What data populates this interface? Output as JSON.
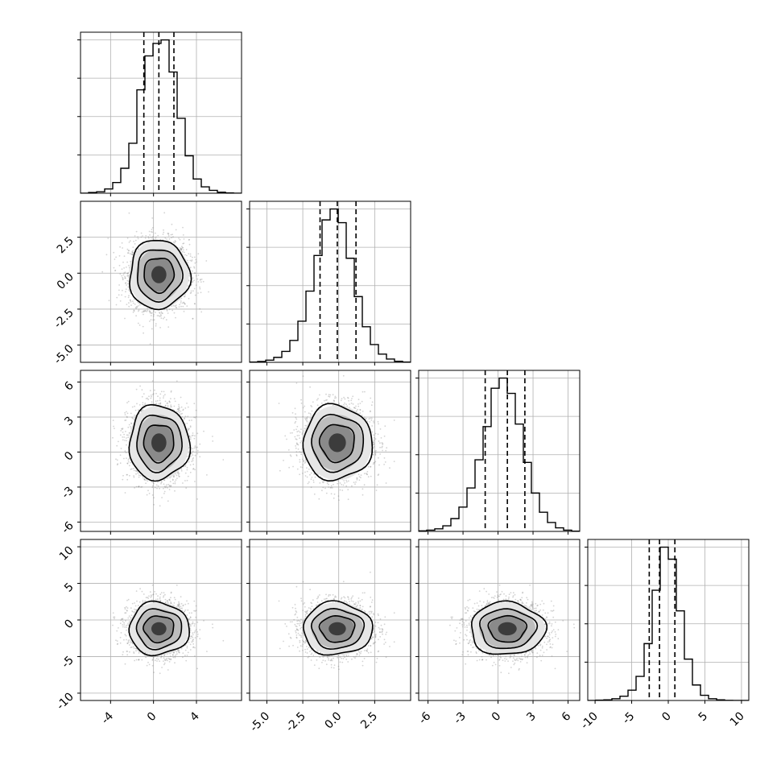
{
  "chart_data": {
    "type": "corner",
    "n_params": 4,
    "grid": true,
    "colors": {
      "line": "#000000",
      "grid": "#b0b0b0",
      "scatter": "#808080",
      "frame": "#000000"
    },
    "ranges": [
      [
        -6.8,
        8.2
      ],
      [
        -6.2,
        5.0
      ],
      [
        -6.8,
        7.0
      ],
      [
        -11.0,
        11.0
      ]
    ],
    "tick_labels": [
      [
        "-4",
        "0",
        "4"
      ],
      [
        "-5.0",
        "-2.5",
        "0.0",
        "2.5"
      ],
      [
        "-6",
        "-3",
        "0",
        "3",
        "6"
      ],
      [
        "-10",
        "-5",
        "0",
        "5",
        "10"
      ]
    ],
    "tick_values": [
      [
        -4,
        0,
        4
      ],
      [
        -5,
        -2.5,
        0,
        2.5
      ],
      [
        -6,
        -3,
        0,
        3,
        6
      ],
      [
        -10,
        -5,
        0,
        5,
        10
      ]
    ],
    "quantiles": [
      [
        -0.9,
        0.5,
        1.9
      ],
      [
        -1.3,
        -0.1,
        1.2
      ],
      [
        -1.1,
        0.8,
        2.3
      ],
      [
        -2.6,
        -1.2,
        0.9
      ]
    ],
    "histograms": [
      {
        "bins": [
          -6.8,
          -6.05,
          -5.3,
          -4.55,
          -3.8,
          -3.05,
          -2.3,
          -1.55,
          -0.8,
          -0.05,
          0.7,
          1.45,
          2.2,
          2.95,
          3.7,
          4.45,
          5.2,
          5.95,
          6.7,
          7.45,
          8.2
        ],
        "counts": [
          0,
          2,
          4,
          12,
          30,
          70,
          140,
          290,
          385,
          420,
          430,
          340,
          210,
          105,
          40,
          18,
          8,
          3,
          1,
          0
        ]
      },
      {
        "bins": [
          -6.2,
          -5.64,
          -5.08,
          -4.52,
          -3.96,
          -3.4,
          -2.84,
          -2.28,
          -1.72,
          -1.16,
          -0.6,
          -0.04,
          0.52,
          1.08,
          1.64,
          2.2,
          2.76,
          3.32,
          3.88,
          4.44,
          5.0
        ],
        "counts": [
          1,
          3,
          8,
          18,
          40,
          80,
          150,
          260,
          390,
          520,
          560,
          510,
          380,
          240,
          130,
          65,
          30,
          12,
          4,
          1
        ]
      },
      {
        "bins": [
          -6.8,
          -6.11,
          -5.42,
          -4.73,
          -4.04,
          -3.35,
          -2.66,
          -1.97,
          -1.28,
          -0.59,
          0.1,
          0.79,
          1.48,
          2.17,
          2.86,
          3.55,
          4.24,
          4.93,
          5.62,
          6.31,
          7.0
        ],
        "counts": [
          2,
          5,
          10,
          22,
          50,
          95,
          170,
          280,
          410,
          560,
          600,
          540,
          420,
          270,
          150,
          75,
          35,
          14,
          5,
          1
        ]
      },
      {
        "bins": [
          -11.0,
          -9.9,
          -8.8,
          -7.7,
          -6.6,
          -5.5,
          -4.4,
          -3.3,
          -2.2,
          -1.1,
          0.0,
          1.1,
          2.2,
          3.3,
          4.4,
          5.5,
          6.6,
          7.7,
          8.8,
          9.9,
          11.0
        ],
        "counts": [
          0,
          2,
          4,
          10,
          25,
          60,
          140,
          330,
          640,
          890,
          820,
          520,
          240,
          90,
          30,
          10,
          4,
          1,
          0,
          0
        ]
      }
    ],
    "pairs": [
      {
        "row": 1,
        "col": 0,
        "mean": [
          0.5,
          -0.1
        ],
        "sd": [
          1.4,
          1.2
        ]
      },
      {
        "row": 2,
        "col": 0,
        "mean": [
          0.5,
          0.8
        ],
        "sd": [
          1.4,
          1.6
        ]
      },
      {
        "row": 2,
        "col": 1,
        "mean": [
          -0.1,
          0.8
        ],
        "sd": [
          1.2,
          1.6
        ]
      },
      {
        "row": 3,
        "col": 0,
        "mean": [
          0.5,
          -1.2
        ],
        "sd": [
          1.4,
          1.8
        ]
      },
      {
        "row": 3,
        "col": 1,
        "mean": [
          -0.1,
          -1.2
        ],
        "sd": [
          1.2,
          1.8
        ]
      },
      {
        "row": 3,
        "col": 2,
        "mean": [
          0.8,
          -1.2
        ],
        "sd": [
          1.6,
          1.8
        ]
      }
    ],
    "contour_levels_sigma": [
      0.5,
      1.0,
      1.5,
      2.0
    ],
    "density_levels": [
      0.25,
      0.45,
      0.65,
      0.85
    ]
  }
}
